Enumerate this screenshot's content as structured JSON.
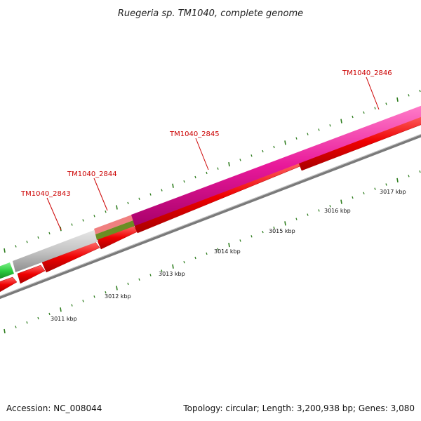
{
  "title": "Ruegeria sp. TM1040, complete genome",
  "footer": {
    "accession": "Accession: NC_008044",
    "summary": "Topology: circular; Length: 3,200,938 bp; Genes: 3,080"
  },
  "gene_labels": [
    "TM1040_2843",
    "TM1040_2844",
    "TM1040_2845",
    "TM1040_2846"
  ],
  "tick_labels": [
    "3011 kbp",
    "3012 kbp",
    "3013 kbp",
    "3014 kbp",
    "3015 kbp",
    "3016 kbp",
    "3017 kbp"
  ],
  "colors": {
    "gene_label": "#cc0000",
    "tick": "#2e7d1e",
    "backbone": "#777777",
    "forward_cds": "#ee0000",
    "pink_feature": "#e8199a",
    "gray_feature": "#bdbdbd",
    "green_feature": "#2ecc40",
    "olive_feature": "#6b8e23",
    "salmon_feature": "#f08080"
  }
}
